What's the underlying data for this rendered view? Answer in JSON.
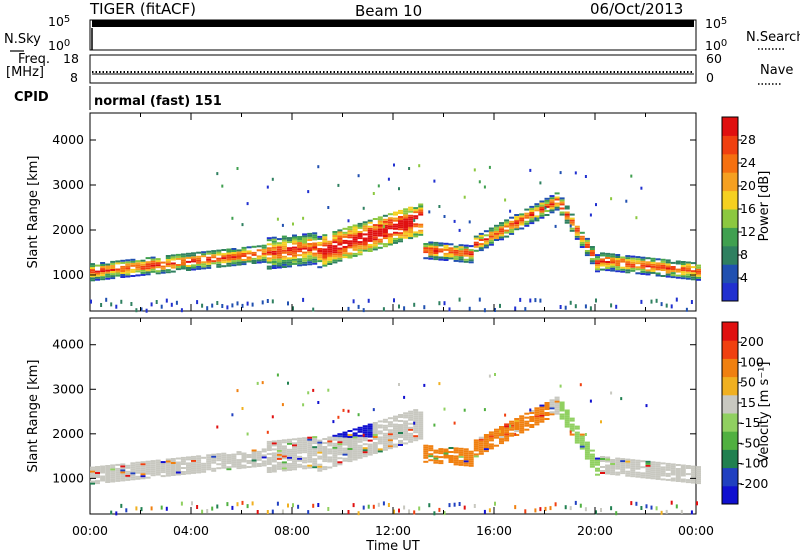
{
  "header": {
    "radar": "TIGER (fitACF)",
    "beam": "Beam 10",
    "date": "06/Oct/2013"
  },
  "top_panels": {
    "nsky_label": "N.Sky",
    "nsky_ticks": [
      "10^5",
      "10^0"
    ],
    "nsearch_label": "N.Search",
    "nsearch_ticks": [
      "10^5",
      "10^0"
    ],
    "freq_label": "Freq.",
    "freq_unit": "[MHz]",
    "freq_ticks": [
      "18",
      "8"
    ],
    "nave_label": "Nave",
    "nave_ticks": [
      "60",
      "0"
    ],
    "cpid_label": "CPID",
    "cpid_value": "normal (fast) 151"
  },
  "colors": {
    "power_scale": [
      "#2030d0",
      "#2050b0",
      "#2f8060",
      "#40a050",
      "#8cc840",
      "#f5d020",
      "#f5a020",
      "#f57010",
      "#f04010",
      "#e01010"
    ],
    "velocity_scale": [
      "#1010d0",
      "#2040c0",
      "#208050",
      "#50b040",
      "#90d060",
      "#c8c8c0",
      "#f0b020",
      "#f08010",
      "#f04010",
      "#e01010"
    ]
  },
  "chart_data": [
    {
      "type": "heatmap",
      "title": "Power",
      "ylabel": "Slant Range [km]",
      "xlabel": "",
      "ylim": [
        200,
        4600
      ],
      "yticks": [
        "4000",
        "3000",
        "2000",
        "1000"
      ],
      "xlim_hours": [
        0,
        24
      ],
      "colorbar": {
        "label": "Power [dB]",
        "ticks": [
          "28",
          "24",
          "20",
          "16",
          "12",
          "8",
          "4"
        ],
        "range": [
          0,
          32
        ]
      }
    },
    {
      "type": "heatmap",
      "title": "Velocity",
      "ylabel": "Slant Range [km]",
      "xlabel": "Time UT",
      "ylim": [
        200,
        4600
      ],
      "yticks": [
        "4000",
        "3000",
        "2000",
        "1000"
      ],
      "x_tick_labels": [
        "00:00",
        "04:00",
        "08:00",
        "12:00",
        "16:00",
        "20:00",
        "00:00"
      ],
      "xlim_hours": [
        0,
        24
      ],
      "colorbar": {
        "label": "Velocity [m s⁻¹]",
        "ticks": [
          "200",
          "100",
          "50",
          "15",
          "-15",
          "-50",
          "-100",
          "-200"
        ]
      }
    }
  ]
}
